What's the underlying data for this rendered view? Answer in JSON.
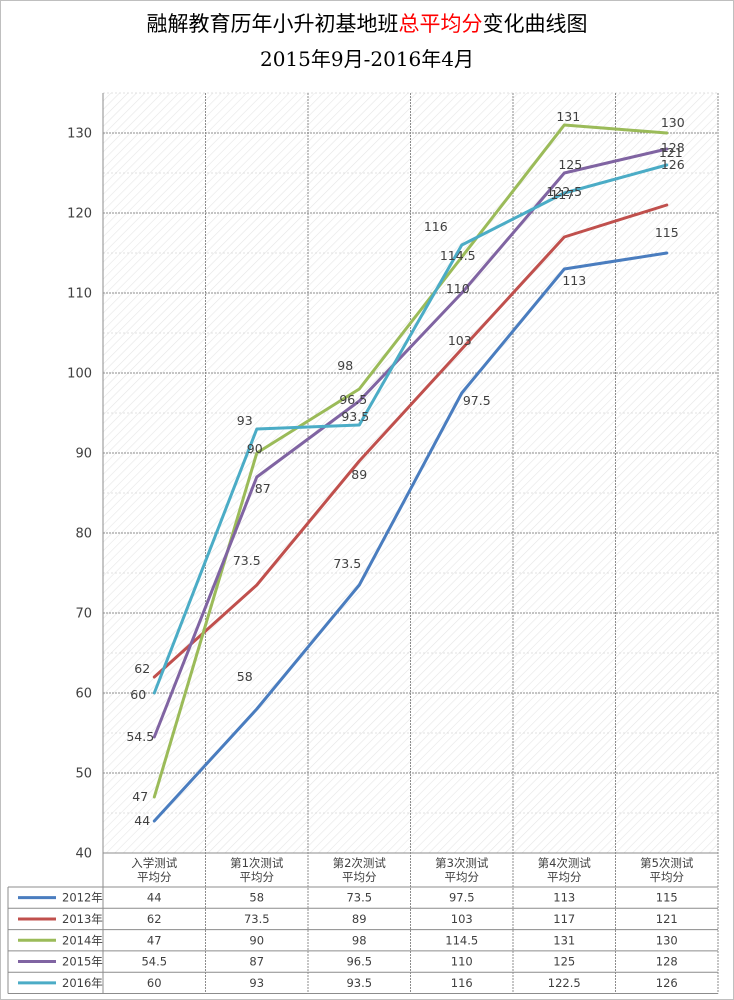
{
  "title": {
    "line1_prefix": "融解教育历年小升初基地班",
    "line1_red": "总平均分",
    "line1_suffix": "变化曲线图",
    "line2": "2015年9月-2016年4月"
  },
  "colors": {
    "2012年": "#4a7dbf",
    "2013年": "#c0504d",
    "2014年": "#9bbb59",
    "2015年": "#8064a2",
    "2016年": "#4bacc6"
  },
  "chart_data": {
    "type": "line",
    "title": "融解教育历年小升初基地班总平均分变化曲线图 2015年9月-2016年4月",
    "categories": [
      "入学测试\n平均分",
      "第1次测试\n平均分",
      "第2次测试\n平均分",
      "第3次测试\n平均分",
      "第4次测试\n平均分",
      "第5次测试\n平均分"
    ],
    "ylim": [
      40,
      135
    ],
    "yticks": [
      40,
      50,
      60,
      70,
      80,
      90,
      100,
      110,
      120,
      130
    ],
    "grid": true,
    "data_table": true,
    "series": [
      {
        "name": "2012年",
        "values": [
          44,
          58,
          73.5,
          97.5,
          113,
          115
        ],
        "labels": [
          "44",
          "58",
          "73.5",
          "97.5",
          "113",
          "115"
        ]
      },
      {
        "name": "2013年",
        "values": [
          62,
          73.5,
          89,
          103,
          117,
          121
        ],
        "labels": [
          "62",
          "73.5",
          "89",
          "103",
          "117",
          "121"
        ]
      },
      {
        "name": "2014年",
        "values": [
          47,
          90,
          98,
          114.5,
          131,
          130
        ],
        "labels": [
          "47",
          "90",
          "98",
          "114.5",
          "131",
          "130"
        ]
      },
      {
        "name": "2015年",
        "values": [
          54.5,
          87,
          96.5,
          110,
          125,
          128
        ],
        "labels": [
          "54.5",
          "87",
          "96.5",
          "110",
          "125",
          "128"
        ]
      },
      {
        "name": "2016年",
        "values": [
          60,
          93,
          93.5,
          116,
          122.5,
          126
        ],
        "labels": [
          "60",
          "93",
          "93.5",
          "116",
          "122.5",
          "126"
        ]
      }
    ]
  }
}
